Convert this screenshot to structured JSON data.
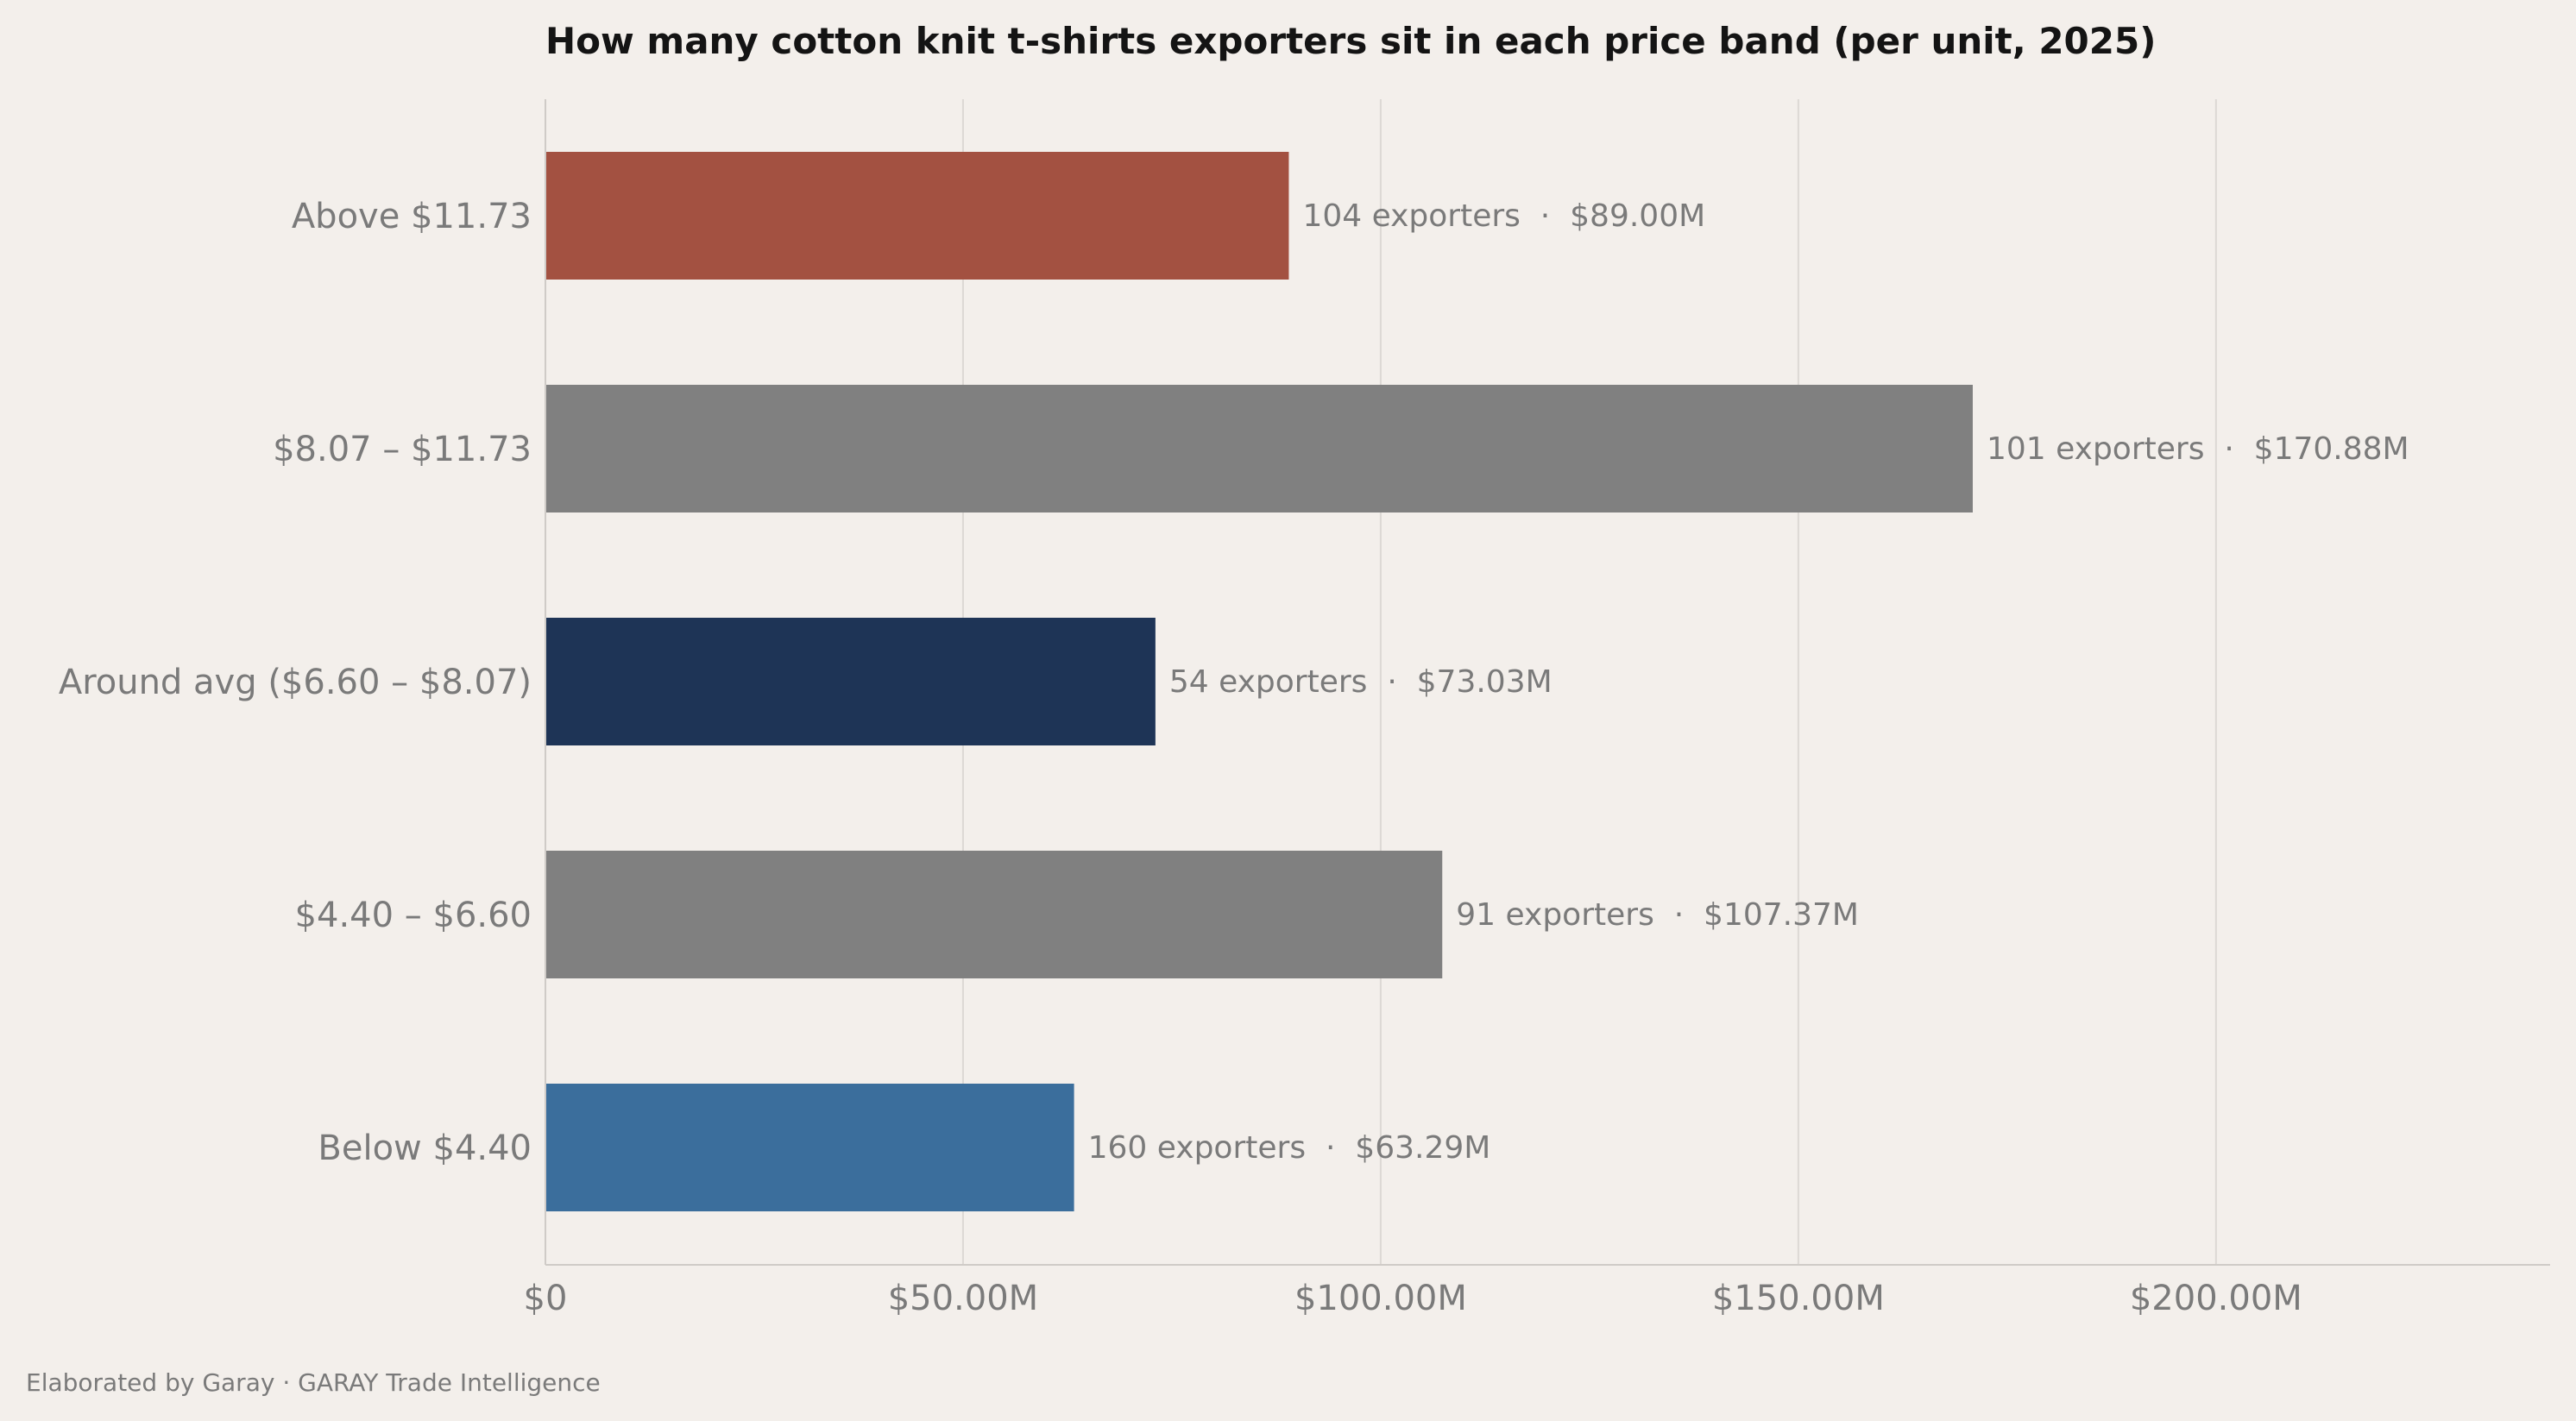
{
  "chart_data": {
    "type": "bar",
    "orientation": "horizontal",
    "title": "How many cotton knit t-shirts exporters sit in each price band (per unit, 2025)",
    "xlabel": "",
    "ylabel": "",
    "xlim": [
      0,
      240
    ],
    "x_unit": "$M",
    "grid": "vertical",
    "legend": "none",
    "ticks": [
      {
        "value": 0,
        "label": "$0"
      },
      {
        "value": 50,
        "label": "$50.00M"
      },
      {
        "value": 100,
        "label": "$100.00M"
      },
      {
        "value": 150,
        "label": "$150.00M"
      },
      {
        "value": 200,
        "label": "$200.00M"
      }
    ],
    "bars": [
      {
        "category": "Above $11.73",
        "value": 89.0,
        "exporters": 104,
        "label": "104 exporters  ·  $89.00M",
        "color": "#a35141"
      },
      {
        "category": "$8.07 – $11.73",
        "value": 170.88,
        "exporters": 101,
        "label": "101 exporters  ·  $170.88M",
        "color": "#808080"
      },
      {
        "category": "Around avg ($6.60 – $8.07)",
        "value": 73.03,
        "exporters": 54,
        "label": "54 exporters  ·  $73.03M",
        "color": "#1e3456"
      },
      {
        "category": "$4.40 – $6.60",
        "value": 107.37,
        "exporters": 91,
        "label": "91 exporters  ·  $107.37M",
        "color": "#808080"
      },
      {
        "category": "Below $4.40",
        "value": 63.29,
        "exporters": 160,
        "label": "160 exporters  ·  $63.29M",
        "color": "#3b6e9c"
      }
    ]
  },
  "footer": "Elaborated by Garay  ·  GARAY Trade Intelligence",
  "colors": {
    "background": "#f3efeb",
    "grid": "#dcd8d4",
    "axis": "#cfcbc7",
    "text_muted": "#7a7a7a",
    "title": "#141414"
  }
}
